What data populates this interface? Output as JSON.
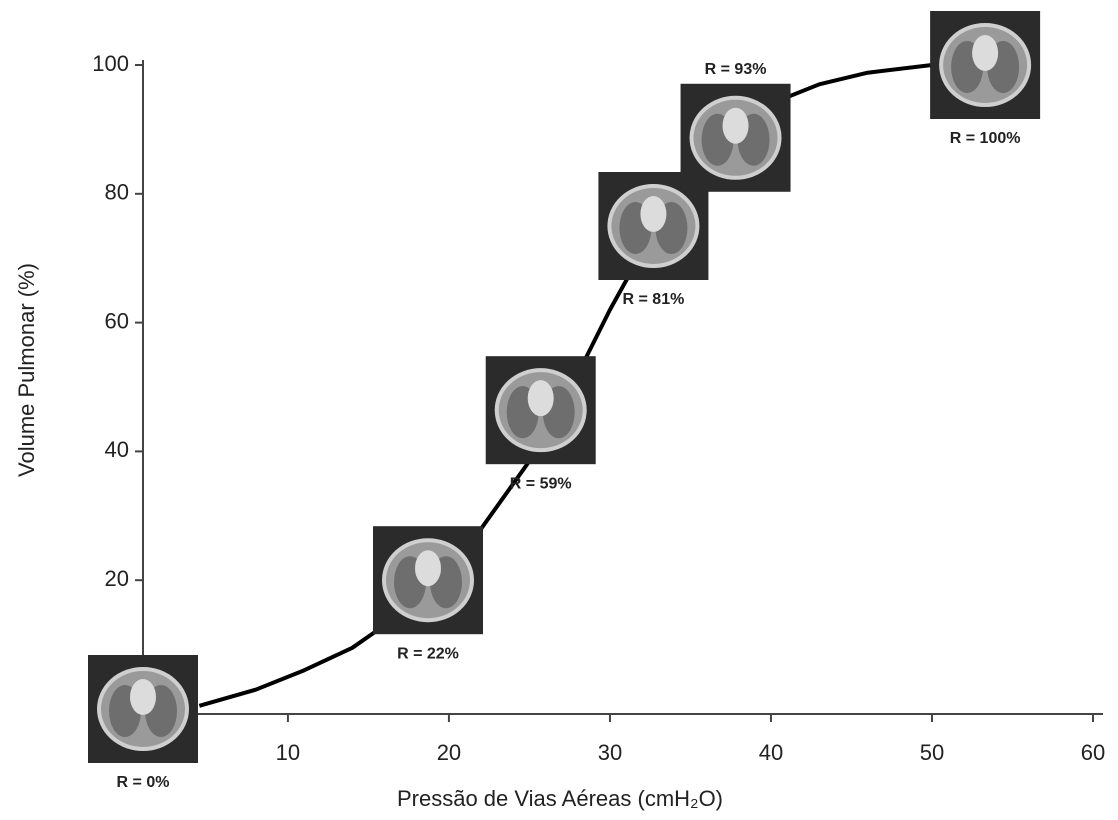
{
  "chart_data": {
    "type": "line",
    "x_label": "Pressão de Vias Aéreas (cmH₂O)",
    "y_label": "Volume Pulmonar (%)",
    "xlim": [
      1,
      60
    ],
    "ylim": [
      0,
      100
    ],
    "xticks": [
      10,
      20,
      30,
      40,
      50,
      60
    ],
    "yticks": [
      20,
      40,
      60,
      80,
      100
    ],
    "grid": false,
    "series": [
      {
        "color": "#000000",
        "x": [
          4.5,
          8,
          11,
          14,
          16,
          18,
          20,
          22,
          24,
          26,
          28,
          30,
          32,
          34,
          36,
          38,
          40,
          43,
          46,
          50
        ],
        "values": [
          0.5,
          3,
          6,
          9.5,
          13,
          17,
          22,
          28,
          35,
          42,
          52,
          62,
          71,
          79,
          86,
          91,
          94,
          97,
          98.8,
          100
        ]
      }
    ],
    "annotations": [
      {
        "text": "R = 0%",
        "x": 1,
        "y": 0,
        "label_position": "below"
      },
      {
        "text": "R = 22%",
        "x": 18.7,
        "y": 20,
        "label_position": "below"
      },
      {
        "text": "R = 59%",
        "x": 25.7,
        "y": 46.4,
        "label_position": "below"
      },
      {
        "text": "R = 81%",
        "x": 32.7,
        "y": 75,
        "label_position": "below"
      },
      {
        "text": "R = 93%",
        "x": 37.8,
        "y": 88.7,
        "label_position": "above"
      },
      {
        "text": "R = 100%",
        "x": 53.3,
        "y": 100,
        "label_position": "below"
      }
    ]
  }
}
